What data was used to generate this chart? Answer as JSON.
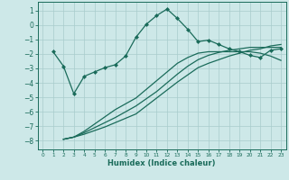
{
  "title": "",
  "xlabel": "Humidex (Indice chaleur)",
  "xlim": [
    -0.5,
    23.5
  ],
  "ylim": [
    -8.6,
    1.6
  ],
  "yticks": [
    1,
    0,
    -1,
    -2,
    -3,
    -4,
    -5,
    -6,
    -7,
    -8
  ],
  "xticks": [
    0,
    1,
    2,
    3,
    4,
    5,
    6,
    7,
    8,
    9,
    10,
    11,
    12,
    13,
    14,
    15,
    16,
    17,
    18,
    19,
    20,
    21,
    22,
    23
  ],
  "background_color": "#cde8e8",
  "grid_color": "#a8cccc",
  "line_color": "#1a6b5a",
  "line1_x": [
    1,
    2,
    3,
    4,
    5,
    6,
    7,
    8,
    9,
    10,
    11,
    12,
    13,
    14,
    15,
    16,
    17,
    18,
    19,
    20,
    21,
    22,
    23
  ],
  "line1_y": [
    -1.85,
    -2.85,
    -4.75,
    -3.55,
    -3.25,
    -2.95,
    -2.75,
    -2.15,
    -0.85,
    0.05,
    0.65,
    1.1,
    0.45,
    -0.3,
    -1.15,
    -1.05,
    -1.35,
    -1.65,
    -1.85,
    -2.1,
    -2.25,
    -1.75,
    -1.65
  ],
  "line2_x": [
    2,
    3,
    4,
    5,
    6,
    7,
    8,
    9,
    10,
    11,
    12,
    13,
    14,
    15,
    16,
    17,
    18,
    19,
    20,
    21,
    22,
    23
  ],
  "line2_y": [
    -7.9,
    -7.75,
    -7.55,
    -7.3,
    -7.05,
    -6.75,
    -6.45,
    -6.15,
    -5.6,
    -5.05,
    -4.5,
    -3.95,
    -3.45,
    -2.95,
    -2.65,
    -2.4,
    -2.15,
    -1.95,
    -1.75,
    -1.65,
    -1.45,
    -1.35
  ],
  "line3_x": [
    2,
    3,
    4,
    5,
    6,
    7,
    8,
    9,
    10,
    11,
    12,
    13,
    14,
    15,
    16,
    17,
    18,
    19,
    20,
    21,
    22,
    23
  ],
  "line3_y": [
    -7.9,
    -7.75,
    -7.45,
    -7.1,
    -6.75,
    -6.4,
    -6.0,
    -5.6,
    -5.1,
    -4.6,
    -4.0,
    -3.4,
    -2.85,
    -2.4,
    -2.1,
    -1.9,
    -1.75,
    -1.65,
    -1.55,
    -1.55,
    -1.55,
    -1.55
  ],
  "line4_x": [
    2,
    3,
    4,
    5,
    6,
    7,
    8,
    9,
    10,
    11,
    12,
    13,
    14,
    15,
    16,
    17,
    18,
    19,
    20,
    21,
    22,
    23
  ],
  "line4_y": [
    -7.9,
    -7.75,
    -7.35,
    -6.85,
    -6.35,
    -5.85,
    -5.45,
    -5.05,
    -4.45,
    -3.85,
    -3.25,
    -2.65,
    -2.25,
    -1.95,
    -1.85,
    -1.85,
    -1.85,
    -1.85,
    -1.85,
    -1.95,
    -2.15,
    -2.45
  ]
}
